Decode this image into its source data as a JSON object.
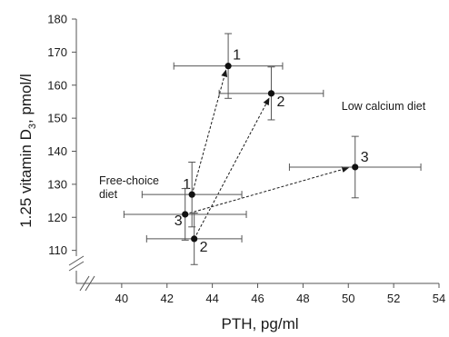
{
  "chart_data": {
    "type": "scatter",
    "xlabel": "PTH, pg/ml",
    "ylabel_main": "1.25 vitamin D",
    "ylabel_sub": "3",
    "ylabel_tail": ", pmol/l",
    "xlim": [
      38,
      54
    ],
    "ylim": [
      100,
      180
    ],
    "x_ticks": [
      40,
      42,
      44,
      46,
      48,
      50,
      52,
      54
    ],
    "y_ticks": [
      110,
      120,
      130,
      140,
      150,
      160,
      170,
      180
    ],
    "axis_break_y": true,
    "grid": false,
    "annotations": [
      {
        "text": "Low calcium diet",
        "x": 49.7,
        "y": 152.5
      },
      {
        "text": "Free-choice",
        "x": 39.0,
        "y": 130.0
      },
      {
        "text": "diet",
        "x": 39.0,
        "y": 125.8
      }
    ],
    "points": [
      {
        "label": "1",
        "x": 44.7,
        "y": 165.8,
        "xerr": 2.4,
        "yerr": 9.8
      },
      {
        "label": "2",
        "x": 46.6,
        "y": 157.5,
        "xerr": 2.3,
        "yerr": 8.0
      },
      {
        "label": "3",
        "x": 50.3,
        "y": 135.2,
        "xerr": 2.9,
        "yerr": 9.3
      },
      {
        "label": "1",
        "x": 43.1,
        "y": 126.9,
        "xerr": 2.2,
        "yerr": 9.8
      },
      {
        "label": "3",
        "x": 42.8,
        "y": 120.9,
        "xerr": 2.7,
        "yerr": 7.8
      },
      {
        "label": "2",
        "x": 43.2,
        "y": 113.5,
        "xerr": 2.1,
        "yerr": 7.8
      }
    ],
    "arrows": [
      {
        "from": [
          43.1,
          126.9
        ],
        "to": [
          44.6,
          164.5
        ]
      },
      {
        "from": [
          43.2,
          113.5
        ],
        "to": [
          46.5,
          156.0
        ]
      },
      {
        "from": [
          42.8,
          120.9
        ],
        "to": [
          50.0,
          135.0
        ]
      }
    ]
  }
}
